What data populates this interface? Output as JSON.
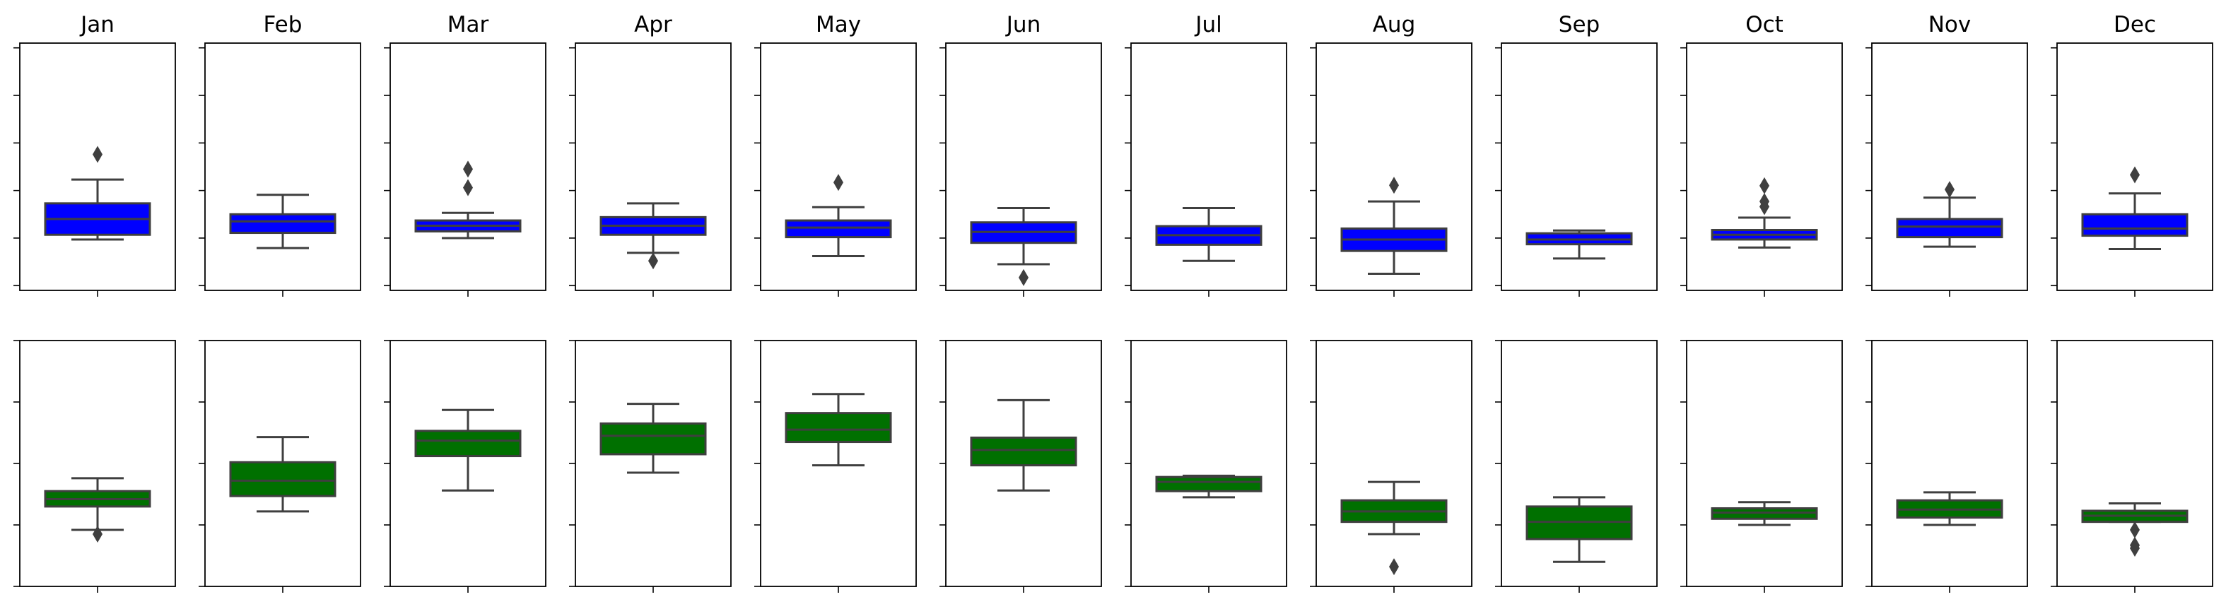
{
  "figure": {
    "months": [
      "Jan",
      "Feb",
      "Mar",
      "Apr",
      "May",
      "Jun",
      "Jul",
      "Aug",
      "Sep",
      "Oct",
      "Nov",
      "Dec"
    ],
    "rows": 2,
    "cols": 12
  },
  "chart_data": {
    "type": "box",
    "title": "",
    "xlabel": "",
    "ylabel": "",
    "axis_ticks_labeled": false,
    "panels_row1": {
      "color": "#0000ff",
      "ylim": [
        0,
        5.2
      ],
      "yticks": [
        0.1,
        1.1,
        2.1,
        3.1,
        4.1,
        5.1
      ],
      "boxes": [
        {
          "month": "Jan",
          "whislo": 1.07,
          "q1": 1.17,
          "med": 1.5,
          "q3": 1.83,
          "whishi": 2.33,
          "fliers": [
            2.86
          ]
        },
        {
          "month": "Feb",
          "whislo": 0.89,
          "q1": 1.21,
          "med": 1.45,
          "q3": 1.6,
          "whishi": 2.01,
          "fliers": []
        },
        {
          "month": "Mar",
          "whislo": 1.1,
          "q1": 1.24,
          "med": 1.36,
          "q3": 1.47,
          "whishi": 1.63,
          "fliers": [
            2.55,
            2.16
          ]
        },
        {
          "month": "Apr",
          "whislo": 0.79,
          "q1": 1.17,
          "med": 1.36,
          "q3": 1.54,
          "whishi": 1.83,
          "fliers": [
            0.62
          ]
        },
        {
          "month": "May",
          "whislo": 0.72,
          "q1": 1.12,
          "med": 1.32,
          "q3": 1.47,
          "whishi": 1.75,
          "fliers": [
            2.27
          ]
        },
        {
          "month": "Jun",
          "whislo": 0.55,
          "q1": 1.0,
          "med": 1.23,
          "q3": 1.43,
          "whishi": 1.73,
          "fliers": [
            0.27
          ]
        },
        {
          "month": "Jul",
          "whislo": 0.62,
          "q1": 0.96,
          "med": 1.16,
          "q3": 1.35,
          "whishi": 1.73,
          "fliers": []
        },
        {
          "month": "Aug",
          "whislo": 0.35,
          "q1": 0.83,
          "med": 1.07,
          "q3": 1.3,
          "whishi": 1.87,
          "fliers": [
            2.21
          ]
        },
        {
          "month": "Sep",
          "whislo": 0.67,
          "q1": 0.97,
          "med": 1.07,
          "q3": 1.2,
          "whishi": 1.26,
          "fliers": []
        },
        {
          "month": "Oct",
          "whislo": 0.9,
          "q1": 1.07,
          "med": 1.17,
          "q3": 1.27,
          "whishi": 1.53,
          "fliers": [
            1.76,
            1.87,
            2.2
          ]
        },
        {
          "month": "Nov",
          "whislo": 0.92,
          "q1": 1.12,
          "med": 1.34,
          "q3": 1.5,
          "whishi": 1.95,
          "fliers": [
            2.12
          ]
        },
        {
          "month": "Dec",
          "whislo": 0.87,
          "q1": 1.15,
          "med": 1.3,
          "q3": 1.6,
          "whishi": 2.04,
          "fliers": [
            2.43
          ]
        }
      ]
    },
    "panels_row2": {
      "color": "#007000",
      "ylim": [
        0,
        4.0
      ],
      "yticks": [
        0.0,
        1.0,
        2.0,
        3.0,
        4.0
      ],
      "boxes": [
        {
          "month": "Jan",
          "whislo": 0.92,
          "q1": 1.3,
          "med": 1.42,
          "q3": 1.55,
          "whishi": 1.76,
          "fliers": [
            0.85
          ]
        },
        {
          "month": "Feb",
          "whislo": 1.22,
          "q1": 1.47,
          "med": 1.72,
          "q3": 2.02,
          "whishi": 2.43,
          "fliers": []
        },
        {
          "month": "Mar",
          "whislo": 1.56,
          "q1": 2.12,
          "med": 2.37,
          "q3": 2.53,
          "whishi": 2.87,
          "fliers": []
        },
        {
          "month": "Apr",
          "whislo": 1.85,
          "q1": 2.15,
          "med": 2.45,
          "q3": 2.65,
          "whishi": 2.97,
          "fliers": []
        },
        {
          "month": "May",
          "whislo": 1.97,
          "q1": 2.35,
          "med": 2.55,
          "q3": 2.82,
          "whishi": 3.13,
          "fliers": []
        },
        {
          "month": "Jun",
          "whislo": 1.56,
          "q1": 1.97,
          "med": 2.22,
          "q3": 2.42,
          "whishi": 3.03,
          "fliers": []
        },
        {
          "month": "Jul",
          "whislo": 1.45,
          "q1": 1.55,
          "med": 1.7,
          "q3": 1.78,
          "whishi": 1.8,
          "fliers": []
        },
        {
          "month": "Aug",
          "whislo": 0.85,
          "q1": 1.05,
          "med": 1.22,
          "q3": 1.4,
          "whishi": 1.7,
          "fliers": [
            0.32
          ]
        },
        {
          "month": "Sep",
          "whislo": 0.4,
          "q1": 0.77,
          "med": 1.05,
          "q3": 1.3,
          "whishi": 1.45,
          "fliers": []
        },
        {
          "month": "Oct",
          "whislo": 1.0,
          "q1": 1.1,
          "med": 1.2,
          "q3": 1.27,
          "whishi": 1.37,
          "fliers": []
        },
        {
          "month": "Nov",
          "whislo": 1.0,
          "q1": 1.12,
          "med": 1.25,
          "q3": 1.4,
          "whishi": 1.53,
          "fliers": []
        },
        {
          "month": "Dec",
          "whislo": 1.05,
          "q1": 1.05,
          "med": 1.15,
          "q3": 1.23,
          "whishi": 1.35,
          "fliers": [
            0.92,
            0.67,
            0.62
          ]
        }
      ]
    }
  }
}
